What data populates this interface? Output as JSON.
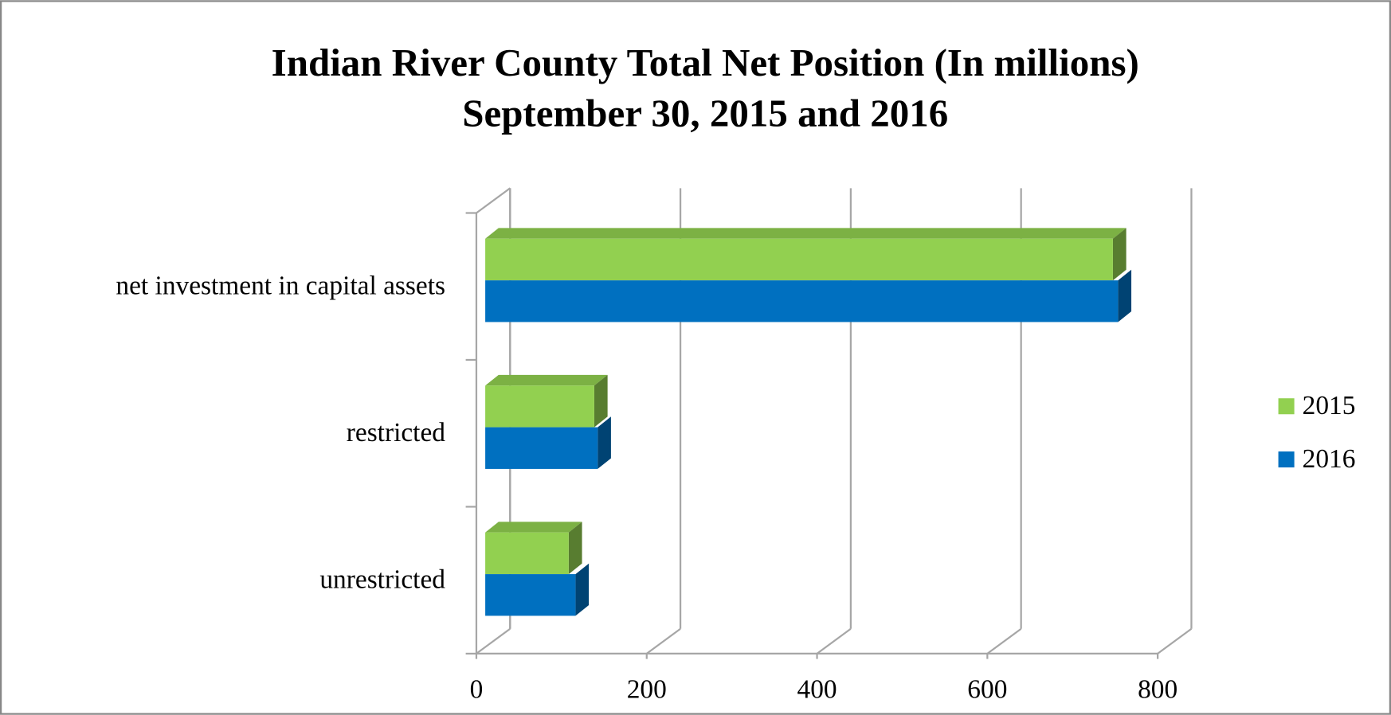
{
  "chart_data": {
    "type": "bar3d-horizontal",
    "title": "Indian River County Total Net Position (In millions)",
    "subtitle": "September 30, 2015 and 2016",
    "categories": [
      "net investment in capital assets",
      "restricted",
      "unrestricted"
    ],
    "series": [
      {
        "name": "2015",
        "color": "#92d050",
        "values": [
          737,
          128,
          98
        ]
      },
      {
        "name": "2016",
        "color": "#0070c0",
        "values": [
          743,
          132,
          106
        ]
      }
    ],
    "xlim": [
      0,
      800
    ],
    "xticks": [
      0,
      200,
      400,
      600,
      800
    ],
    "grid": true,
    "legend": "right"
  }
}
